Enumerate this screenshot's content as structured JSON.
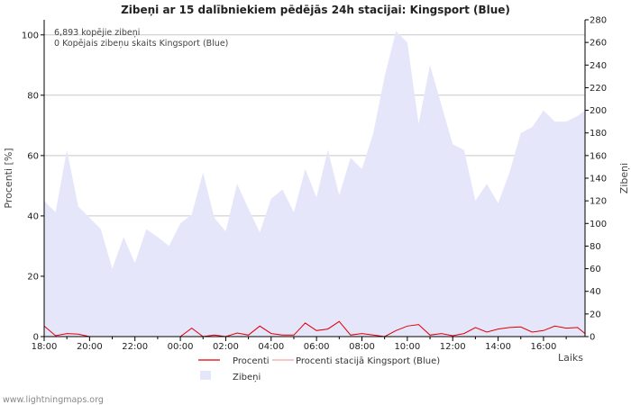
{
  "chart_data": {
    "type": "area",
    "title": "Zibeņi ar 15 dalībniekiem pēdējās 24h stacijai: Kingsport (Blue)",
    "xlabel": "Laiks",
    "ylabel_left": "Procenti   [%]",
    "ylabel_right": "Zibeņi",
    "ylim_left": [
      0,
      105
    ],
    "ylim_right": [
      0,
      280
    ],
    "x_range_hours": [
      0,
      23.83
    ],
    "x_tick_labels": [
      "18:00",
      "20:00",
      "22:00",
      "00:00",
      "02:00",
      "04:00",
      "06:00",
      "08:00",
      "10:00",
      "12:00",
      "14:00",
      "16:00"
    ],
    "y_left_ticks": [
      0,
      20,
      40,
      60,
      80,
      100
    ],
    "y_right_ticks": [
      0,
      20,
      40,
      60,
      80,
      100,
      120,
      140,
      160,
      180,
      200,
      220,
      240,
      260,
      280
    ],
    "annotations": [
      "6,893 kopējie zibeņi",
      "0 Kopējais zibeņu skaits Kingsport (Blue)"
    ],
    "legend": {
      "procenti": "Procenti",
      "procenti_station": "Procenti stacijā Kingsport (Blue)",
      "zibeni": "Zibeņi"
    },
    "series": [
      {
        "name": "Zibeņi",
        "axis": "right",
        "color": "#e6e6fb",
        "x": [
          0,
          0.5,
          1,
          1.5,
          2,
          2.5,
          3,
          3.5,
          4,
          4.5,
          5,
          5.5,
          6,
          6.5,
          7,
          7.5,
          8,
          8.5,
          9,
          9.5,
          10,
          10.5,
          11,
          11.5,
          12,
          12.5,
          13,
          13.5,
          14,
          14.5,
          15,
          15.5,
          16,
          16.5,
          17,
          17.5,
          18,
          18.5,
          19,
          19.5,
          20,
          20.5,
          21,
          21.5,
          22,
          22.5,
          23,
          23.5,
          23.83
        ],
        "values": [
          120,
          110,
          165,
          115,
          105,
          95,
          60,
          88,
          65,
          95,
          88,
          80,
          100,
          108,
          145,
          105,
          93,
          135,
          113,
          92,
          122,
          130,
          110,
          148,
          123,
          165,
          125,
          158,
          148,
          180,
          230,
          270,
          260,
          188,
          240,
          205,
          170,
          165,
          120,
          135,
          118,
          145,
          180,
          185,
          200,
          190,
          190,
          195,
          200
        ]
      },
      {
        "name": "Procenti",
        "axis": "left",
        "color": "#dd0000",
        "x": [
          0,
          0.5,
          1,
          1.5,
          2,
          2.5,
          3,
          3.5,
          4,
          4.5,
          5,
          5.5,
          6,
          6.5,
          7,
          7.5,
          8,
          8.5,
          9,
          9.5,
          10,
          10.5,
          11,
          11.5,
          12,
          12.5,
          13,
          13.5,
          14,
          14.5,
          15,
          15.5,
          16,
          16.5,
          17,
          17.5,
          18,
          18.5,
          19,
          19.5,
          20,
          20.5,
          21,
          21.5,
          22,
          22.5,
          23,
          23.5,
          23.83
        ],
        "values": [
          3.5,
          0.3,
          1,
          0.8,
          0,
          0,
          0,
          0,
          0,
          0,
          0,
          0,
          0,
          2.8,
          0,
          0.5,
          0,
          1.2,
          0.5,
          3.5,
          1,
          0.5,
          0.5,
          4.5,
          2,
          2.5,
          5,
          0.5,
          1,
          0.5,
          0,
          2,
          3.5,
          4,
          0.5,
          1,
          0.3,
          1,
          3,
          1.5,
          2.5,
          3,
          3.2,
          1.5,
          2,
          3.5,
          2.8,
          3,
          1
        ]
      },
      {
        "name": "Procenti stacijā Kingsport (Blue)",
        "axis": "left",
        "color": "#f4a0a0",
        "x": [
          0,
          23.83
        ],
        "values": [
          0,
          0
        ]
      }
    ]
  },
  "footer": "www.lightningmaps.org"
}
